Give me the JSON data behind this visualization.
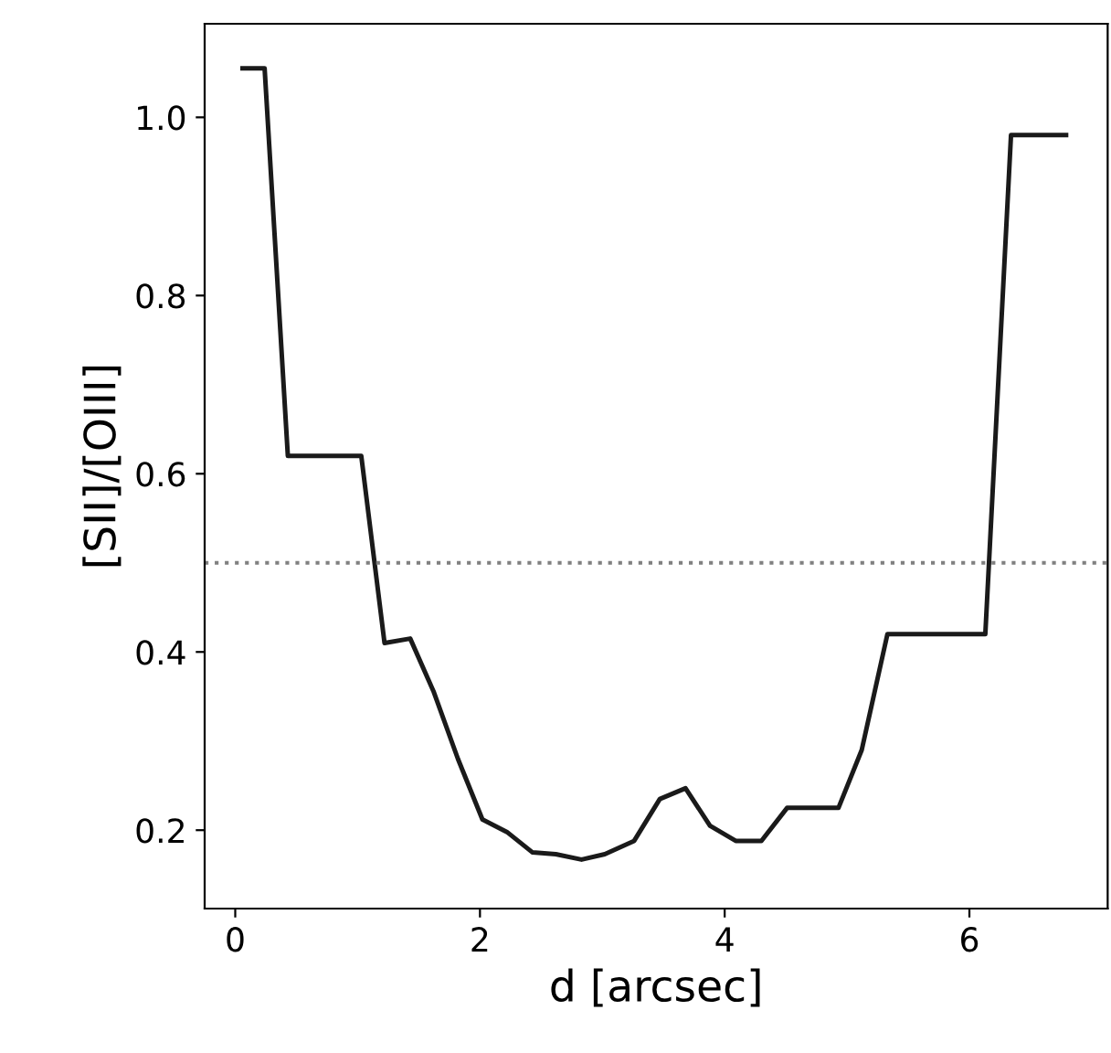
{
  "chart_data": {
    "type": "line",
    "xlabel": "d [arcsec]",
    "ylabel": "[SII]/[OIII]",
    "x": [
      0.06,
      0.24,
      0.43,
      1.03,
      1.22,
      1.43,
      1.62,
      1.82,
      2.02,
      2.22,
      2.43,
      2.62,
      2.83,
      3.02,
      3.26,
      3.47,
      3.68,
      3.88,
      4.09,
      4.3,
      4.51,
      4.93,
      5.12,
      5.33,
      6.13,
      6.34,
      6.79
    ],
    "series": [
      {
        "color": "#1a1a1a",
        "values": [
          1.055,
          1.055,
          0.62,
          0.62,
          0.41,
          0.415,
          0.356,
          0.28,
          0.212,
          0.198,
          0.175,
          0.173,
          0.167,
          0.173,
          0.188,
          0.235,
          0.247,
          0.205,
          0.188,
          0.188,
          0.225,
          0.225,
          0.29,
          0.42,
          0.42,
          0.98,
          0.98
        ]
      }
    ],
    "xlim": [
      -0.25,
      7.13
    ],
    "ylim": [
      0.112,
      1.105
    ],
    "xticks": [
      0,
      2,
      4,
      6
    ],
    "yticks": [
      0.2,
      0.4,
      0.6,
      0.8,
      {
        "value": 1,
        "label": "1.0"
      }
    ],
    "ref_lines": [
      {
        "axis": "y",
        "value": 0.5,
        "color": "#808080",
        "line_style": "dotted"
      }
    ],
    "grid": false,
    "legend": false,
    "marker": "none",
    "line_style": "solid"
  }
}
